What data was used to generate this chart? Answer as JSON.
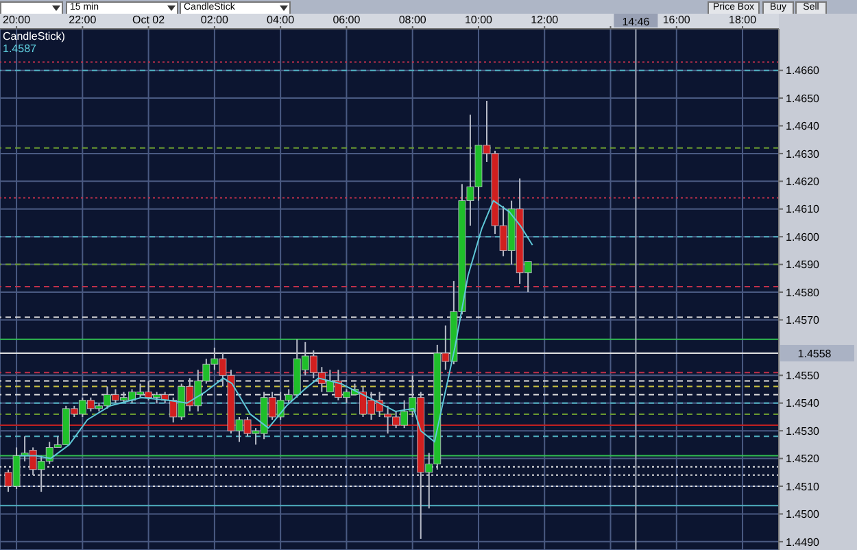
{
  "chart_data": {
    "type": "candlestick",
    "annotations": [
      "CandleStick)",
      "1.4587",
      "15 min",
      "CandleStick",
      "Price Box",
      "Buy",
      "Sell"
    ],
    "x": [
      "--10-01T19:45",
      "--10-01T20:00",
      "--10-01T20:15",
      "--10-01T20:30",
      "--10-01T20:45",
      "--10-01T21:00",
      "--10-01T21:15",
      "--10-01T21:30",
      "--10-01T21:45",
      "--10-01T22:00",
      "--10-01T22:15",
      "--10-01T22:30",
      "--10-01T22:45",
      "--10-01T23:00",
      "--10-01T23:15",
      "--10-01T23:30",
      "--10-01T23:45",
      "--10-02T00:00",
      "--10-02T00:15",
      "--10-02T00:30",
      "--10-02T00:45",
      "--10-02T01:00",
      "--10-02T01:15",
      "--10-02T01:30",
      "--10-02T01:45",
      "--10-02T02:00",
      "--10-02T02:15",
      "--10-02T02:30",
      "--10-02T02:45",
      "--10-02T03:00",
      "--10-02T03:15",
      "--10-02T03:30",
      "--10-02T03:45",
      "--10-02T04:00",
      "--10-02T04:15",
      "--10-02T04:30",
      "--10-02T04:45",
      "--10-02T05:00",
      "--10-02T05:15",
      "--10-02T05:30",
      "--10-02T05:45",
      "--10-02T06:00",
      "--10-02T06:15",
      "--10-02T06:30",
      "--10-02T06:45",
      "--10-02T07:00",
      "--10-02T07:15",
      "--10-02T07:30",
      "--10-02T07:45",
      "--10-02T08:00",
      "--10-02T08:15",
      "--10-02T08:30",
      "--10-02T08:45",
      "--10-02T09:00",
      "--10-02T09:15",
      "--10-02T09:30",
      "--10-02T09:45",
      "--10-02T10:00",
      "--10-02T10:15",
      "--10-02T10:30",
      "--10-02T10:45",
      "--10-02T11:00",
      "--10-02T11:15",
      "--10-02T11:30"
    ],
    "ohlc": [
      [
        1.4515,
        1.4516,
        1.4508,
        1.451
      ],
      [
        1.451,
        1.4524,
        1.4509,
        1.4521
      ],
      [
        1.4521,
        1.4528,
        1.4519,
        1.4522
      ],
      [
        1.4523,
        1.4524,
        1.4514,
        1.4516
      ],
      [
        1.4516,
        1.4521,
        1.4508,
        1.4519
      ],
      [
        1.4519,
        1.4526,
        1.4518,
        1.4524
      ],
      [
        1.4524,
        1.4528,
        1.4524,
        1.4525
      ],
      [
        1.4525,
        1.4539,
        1.4525,
        1.4538
      ],
      [
        1.4538,
        1.4539,
        1.4535,
        1.4536
      ],
      [
        1.4536,
        1.4542,
        1.4535,
        1.4541
      ],
      [
        1.4541,
        1.4542,
        1.4537,
        1.4538
      ],
      [
        1.4538,
        1.454,
        1.4537,
        1.4539
      ],
      [
        1.4539,
        1.4546,
        1.4538,
        1.4543
      ],
      [
        1.4543,
        1.4545,
        1.454,
        1.4541
      ],
      [
        1.4541,
        1.4544,
        1.454,
        1.4542
      ],
      [
        1.4541,
        1.4545,
        1.454,
        1.4544
      ],
      [
        1.4543,
        1.4547,
        1.4542,
        1.4544
      ],
      [
        1.4544,
        1.4548,
        1.4541,
        1.4542
      ],
      [
        1.4542,
        1.4544,
        1.454,
        1.4543
      ],
      [
        1.4543,
        1.4544,
        1.454,
        1.4541
      ],
      [
        1.4541,
        1.4542,
        1.4533,
        1.4535
      ],
      [
        1.4535,
        1.4547,
        1.4534,
        1.4546
      ],
      [
        1.4546,
        1.4549,
        1.4537,
        1.4539
      ],
      [
        1.4539,
        1.4552,
        1.4537,
        1.4548
      ],
      [
        1.4548,
        1.4556,
        1.4547,
        1.4554
      ],
      [
        1.4554,
        1.456,
        1.4552,
        1.4556
      ],
      [
        1.4556,
        1.4558,
        1.4546,
        1.455
      ],
      [
        1.455,
        1.4552,
        1.4529,
        1.453
      ],
      [
        1.453,
        1.4535,
        1.4526,
        1.4534
      ],
      [
        1.4534,
        1.4535,
        1.4528,
        1.4529
      ],
      [
        1.4529,
        1.4531,
        1.4525,
        1.453
      ],
      [
        1.4529,
        1.4544,
        1.4527,
        1.4542
      ],
      [
        1.4542,
        1.4544,
        1.4534,
        1.4535
      ],
      [
        1.4535,
        1.4544,
        1.4534,
        1.4541
      ],
      [
        1.4541,
        1.4545,
        1.454,
        1.4543
      ],
      [
        1.4543,
        1.4563,
        1.4542,
        1.4556
      ],
      [
        1.4552,
        1.4562,
        1.455,
        1.4557
      ],
      [
        1.4557,
        1.4559,
        1.4549,
        1.4551
      ],
      [
        1.4551,
        1.4553,
        1.4544,
        1.4547
      ],
      [
        1.4544,
        1.4552,
        1.4544,
        1.4548
      ],
      [
        1.4548,
        1.4552,
        1.4541,
        1.4542
      ],
      [
        1.4542,
        1.4545,
        1.454,
        1.4544
      ],
      [
        1.4543,
        1.4547,
        1.4543,
        1.4545
      ],
      [
        1.4544,
        1.4546,
        1.4535,
        1.4536
      ],
      [
        1.4541,
        1.4544,
        1.4534,
        1.4536
      ],
      [
        1.4541,
        1.4544,
        1.4535,
        1.4537
      ],
      [
        1.4536,
        1.4539,
        1.4529,
        1.4535
      ],
      [
        1.4535,
        1.4537,
        1.4531,
        1.4532
      ],
      [
        1.4532,
        1.4541,
        1.4531,
        1.4537
      ],
      [
        1.4537,
        1.455,
        1.4535,
        1.4542
      ],
      [
        1.4542,
        1.4544,
        1.4491,
        1.4515
      ],
      [
        1.4515,
        1.4522,
        1.4502,
        1.4518
      ],
      [
        1.4518,
        1.4561,
        1.4516,
        1.4558
      ],
      [
        1.4558,
        1.4568,
        1.4552,
        1.4555
      ],
      [
        1.4555,
        1.4584,
        1.4554,
        1.4573
      ],
      [
        1.4573,
        1.4619,
        1.4572,
        1.4613
      ],
      [
        1.4613,
        1.4644,
        1.4604,
        1.4618
      ],
      [
        1.4618,
        1.4633,
        1.4613,
        1.4633
      ],
      [
        1.4633,
        1.4649,
        1.4627,
        1.463
      ],
      [
        1.463,
        1.4631,
        1.4601,
        1.4604
      ],
      [
        1.4604,
        1.4611,
        1.4593,
        1.4595
      ],
      [
        1.4595,
        1.4613,
        1.459,
        1.461
      ],
      [
        1.461,
        1.4621,
        1.4583,
        1.4587
      ],
      [
        1.4587,
        1.4591,
        1.458,
        1.4591
      ]
    ],
    "colors": [
      "#d11f1f",
      "#1fbf2a",
      "#1fbf2a",
      "#d11f1f",
      "#1fbf2a",
      "#1fbf2a",
      "#1fbf2a",
      "#1fbf2a",
      "#d11f1f",
      "#1fbf2a",
      "#d11f1f",
      "#1fbf2a",
      "#1fbf2a",
      "#d11f1f",
      "#1fbf2a",
      "#1fbf2a",
      "#1fbf2a",
      "#d11f1f",
      "#1fbf2a",
      "#d11f1f",
      "#d11f1f",
      "#1fbf2a",
      "#d11f1f",
      "#1fbf2a",
      "#1fbf2a",
      "#1fbf2a",
      "#d11f1f",
      "#d11f1f",
      "#1fbf2a",
      "#d11f1f",
      "#1fbf2a",
      "#1fbf2a",
      "#d11f1f",
      "#1fbf2a",
      "#1fbf2a",
      "#1fbf2a",
      "#1fbf2a",
      "#d11f1f",
      "#d11f1f",
      "#1fbf2a",
      "#d11f1f",
      "#1fbf2a",
      "#1fbf2a",
      "#d11f1f",
      "#d11f1f",
      "#d11f1f",
      "#d11f1f",
      "#d11f1f",
      "#1fbf2a",
      "#1fbf2a",
      "#d11f1f",
      "#1fbf2a",
      "#1fbf2a",
      "#d11f1f",
      "#1fbf2a",
      "#1fbf2a",
      "#1fbf2a",
      "#1fbf2a",
      "#d11f1f",
      "#d11f1f",
      "#d11f1f",
      "#1fbf2a",
      "#d11f1f",
      "#1fbf2a"
    ],
    "series": [
      {
        "type": "line",
        "color": "#5fc8d8",
        "x": [
          "--10-01T20:05",
          "--10-01T20:35",
          "--10-01T21:02",
          "--10-01T21:36",
          "--10-01T22:09",
          "--10-01T22:50",
          "--10-01T23:47",
          "--10-02T00:37",
          "--10-02T01:10",
          "--10-02T01:43",
          "--10-02T02:16",
          "--10-02T02:32",
          "--10-02T03:05",
          "--10-02T03:38",
          "--10-02T04:11",
          "--10-02T04:44",
          "--10-02T05:09",
          "--10-02T05:50",
          "--10-02T06:40",
          "--10-02T07:29",
          "--10-02T08:02",
          "--10-02T08:15",
          "--10-02T08:40",
          "--10-02T09:17",
          "--10-02T09:41",
          "--10-02T10:06",
          "--10-02T10:27",
          "--10-02T10:56",
          "--10-02T11:16",
          "--10-02T11:38"
        ],
        "values": [
          1.4521,
          1.4521,
          1.452,
          1.4525,
          1.4534,
          1.4539,
          1.4542,
          1.4541,
          1.454,
          1.4544,
          1.4549,
          1.4547,
          1.4536,
          1.4531,
          1.4539,
          1.4545,
          1.4549,
          1.4547,
          1.4542,
          1.4537,
          1.4538,
          1.453,
          1.4526,
          1.456,
          1.4586,
          1.4603,
          1.4613,
          1.4609,
          1.4604,
          1.4597
        ]
      }
    ],
    "ref_lines": [
      {
        "axis": "y",
        "value": 1.4663,
        "color": "#c0304a",
        "line_style": "dotted"
      },
      {
        "axis": "y",
        "value": 1.466,
        "color": "#4fb0c0",
        "line_style": "dashed"
      },
      {
        "axis": "y",
        "value": 1.4632,
        "color": "#6a9a30",
        "line_style": "dashed"
      },
      {
        "axis": "y",
        "value": 1.4614,
        "color": "#c0304a",
        "line_style": "dotted"
      },
      {
        "axis": "y",
        "value": 1.46,
        "color": "#4fb0c0",
        "line_style": "dashed"
      },
      {
        "axis": "y",
        "value": 1.459,
        "color": "#6a9a30",
        "line_style": "dashed"
      },
      {
        "axis": "y",
        "value": 1.4582,
        "color": "#c0304a",
        "line_style": "dashed"
      },
      {
        "axis": "y",
        "value": 1.4571,
        "color": "#e0e0e0",
        "line_style": "dashed"
      },
      {
        "axis": "y",
        "value": 1.4563,
        "color": "#30c050",
        "line_style": "solid"
      },
      {
        "axis": "y",
        "value": 1.4558,
        "label": "1.4558",
        "color": "#e0e0e0",
        "line_style": "solid"
      },
      {
        "axis": "y",
        "value": 1.4551,
        "color": "#c0304a",
        "line_style": "dashed"
      },
      {
        "axis": "y",
        "value": 1.4548,
        "color": "#e0e0e0",
        "line_style": "dashed"
      },
      {
        "axis": "y",
        "value": 1.4546,
        "color": "#c8c040",
        "line_style": "dashed"
      },
      {
        "axis": "y",
        "value": 1.4543,
        "color": "#e0e0e0",
        "line_style": "dashed"
      },
      {
        "axis": "y",
        "value": 1.454,
        "color": "#4fb0c0",
        "line_style": "dashed"
      },
      {
        "axis": "y",
        "value": 1.4536,
        "color": "#6a9a30",
        "line_style": "dashed"
      },
      {
        "axis": "y",
        "value": 1.4532,
        "color": "#c02020",
        "line_style": "solid"
      },
      {
        "axis": "y",
        "value": 1.4528,
        "color": "#4fb0c0",
        "line_style": "dashed"
      },
      {
        "axis": "y",
        "value": 1.4521,
        "color": "#30c050",
        "line_style": "solid"
      },
      {
        "axis": "y",
        "value": 1.4517,
        "color": "#e0e0e0",
        "line_style": "dotted"
      },
      {
        "axis": "y",
        "value": 1.4514,
        "color": "#e0e0e0",
        "line_style": "dotted"
      },
      {
        "axis": "y",
        "value": 1.451,
        "color": "#e0e0e0",
        "line_style": "dotted"
      },
      {
        "axis": "y",
        "value": 1.4503,
        "color": "#4fb0c0",
        "line_style": "solid"
      },
      {
        "axis": "x",
        "value": "--10-02T14:46",
        "label": "14:46",
        "color": "#a0a8b8",
        "line_style": "solid"
      }
    ],
    "xlim": [
      "--10-01T19:30",
      "--10-02T19:06"
    ],
    "xticks": [
      {
        "value": "--10-01T20:00",
        "label": "20:00"
      },
      {
        "value": "--10-01T22:00",
        "label": "22:00"
      },
      {
        "value": "--10-02T00:00",
        "label": "Oct 02"
      },
      {
        "value": "--10-02T02:00",
        "label": "02:00"
      },
      {
        "value": "--10-02T04:00",
        "label": "04:00"
      },
      {
        "value": "--10-02T06:00",
        "label": "06:00"
      },
      {
        "value": "--10-02T08:00",
        "label": "08:00"
      },
      {
        "value": "--10-02T10:00",
        "label": "10:00"
      },
      {
        "value": "--10-02T12:00",
        "label": "12:00"
      },
      {
        "value": "--10-02T14:00",
        "label": null
      },
      {
        "value": "--10-02T16:00",
        "label": "16:00"
      },
      {
        "value": "--10-02T18:00",
        "label": "18:00"
      }
    ],
    "ylim": [
      1.4487,
      1.4675
    ],
    "yticks": [
      {
        "value": 1.449,
        "label": "1.4490"
      },
      {
        "value": 1.45,
        "label": "1.4500"
      },
      {
        "value": 1.451,
        "label": "1.4510"
      },
      {
        "value": 1.452,
        "label": "1.4520"
      },
      {
        "value": 1.453,
        "label": "1.4530"
      },
      {
        "value": 1.454,
        "label": "1.4540"
      },
      {
        "value": 1.455,
        "label": "1.4550"
      },
      {
        "value": 1.457,
        "label": "1.4570"
      },
      {
        "value": 1.458,
        "label": "1.4580"
      },
      {
        "value": 1.459,
        "label": "1.4590"
      },
      {
        "value": 1.46,
        "label": "1.4600"
      },
      {
        "value": 1.461,
        "label": "1.4610"
      },
      {
        "value": 1.462,
        "label": "1.4620"
      },
      {
        "value": 1.463,
        "label": "1.4630"
      },
      {
        "value": 1.464,
        "label": "1.4640"
      },
      {
        "value": 1.465,
        "label": "1.4650"
      },
      {
        "value": 1.466,
        "label": "1.4660"
      }
    ],
    "grid": true
  }
}
